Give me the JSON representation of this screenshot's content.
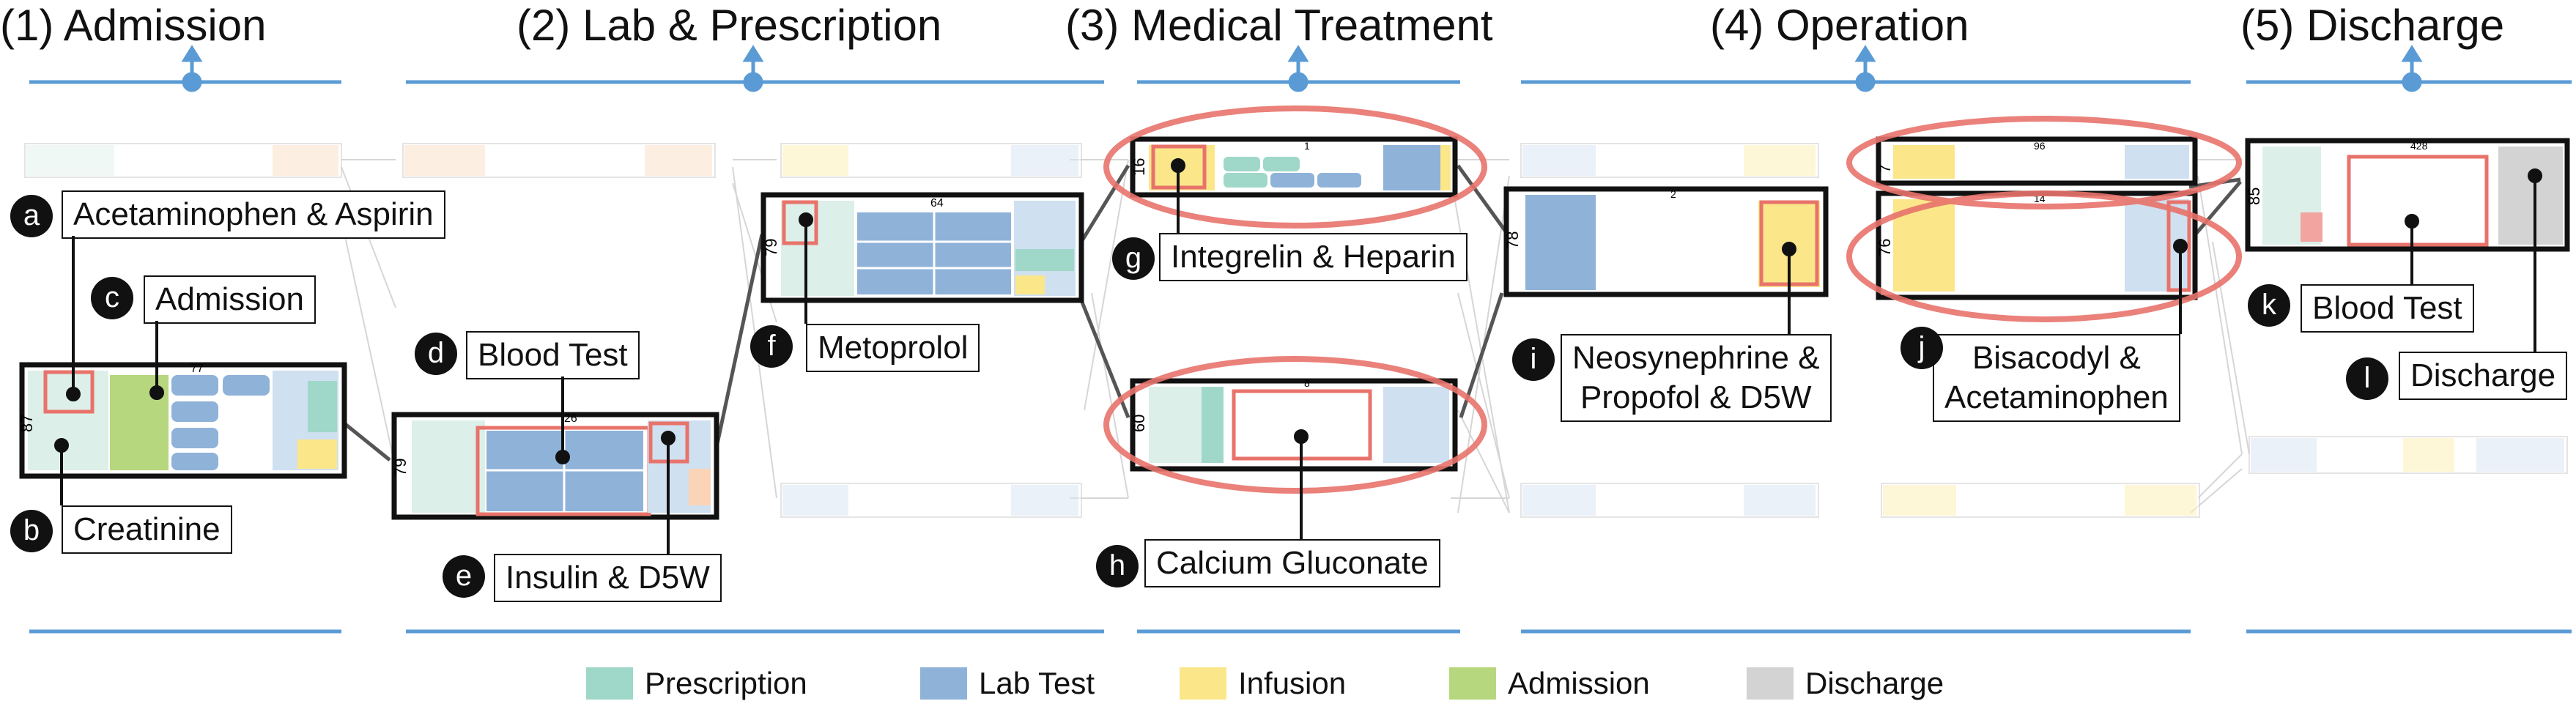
{
  "colors": {
    "prescription": "#9fd8c8",
    "lab_test": "#8fb2d9",
    "infusion": "#fbe78a",
    "admission": "#b6d77d",
    "discharge": "#d3d3d3",
    "axis": "#5b9bd5",
    "highlight": "#e8736b"
  },
  "stages": [
    {
      "label": "(1) Admission"
    },
    {
      "label": "(2) Lab & Prescription"
    },
    {
      "label": "(3) Medical Treatment"
    },
    {
      "label": "(4) Operation"
    },
    {
      "label": "(5) Discharge"
    }
  ],
  "boxes": {
    "admission": {
      "count": "87",
      "header": "77"
    },
    "lab": {
      "count": "79",
      "header": "26"
    },
    "metoprolol": {
      "count": "79",
      "header": "64"
    },
    "integrelin": {
      "count": "16",
      "header": "1"
    },
    "calcium": {
      "count": "60",
      "header": "8"
    },
    "neosynephrine": {
      "count": "78",
      "header": "2"
    },
    "op_top": {
      "count": "7",
      "header": "96"
    },
    "op_bottom": {
      "count": "76",
      "header": "14"
    },
    "discharge": {
      "count": "85",
      "header": "428"
    }
  },
  "callouts": [
    {
      "id": "a",
      "badge": "a",
      "text": "Acetaminophen & Aspirin"
    },
    {
      "id": "b",
      "badge": "b",
      "text": "Creatinine"
    },
    {
      "id": "c",
      "badge": "c",
      "text": "Admission"
    },
    {
      "id": "d",
      "badge": "d",
      "text": "Blood Test"
    },
    {
      "id": "e",
      "badge": "e",
      "text": "Insulin & D5W"
    },
    {
      "id": "f",
      "badge": "f",
      "text": "Metoprolol"
    },
    {
      "id": "g",
      "badge": "g",
      "text": "Integrelin & Heparin"
    },
    {
      "id": "h",
      "badge": "h",
      "text": "Calcium Gluconate"
    },
    {
      "id": "i",
      "badge": "i",
      "text": "Neosynephrine &\nPropofol & D5W"
    },
    {
      "id": "j",
      "badge": "j",
      "text": "Bisacodyl &\nAcetaminophen"
    },
    {
      "id": "k",
      "badge": "k",
      "text": "Blood Test"
    },
    {
      "id": "l",
      "badge": "l",
      "text": "Discharge"
    }
  ],
  "legend": [
    {
      "label": "Prescription",
      "color": "#9fd8c8"
    },
    {
      "label": "Lab Test",
      "color": "#8fb2d9"
    },
    {
      "label": "Infusion",
      "color": "#fbe78a"
    },
    {
      "label": "Admission",
      "color": "#b6d77d"
    },
    {
      "label": "Discharge",
      "color": "#d3d3d3"
    }
  ]
}
